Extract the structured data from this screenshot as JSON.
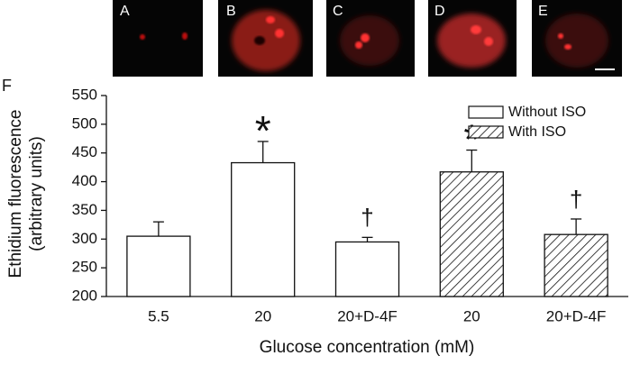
{
  "panels": [
    "A",
    "B",
    "C",
    "D",
    "E"
  ],
  "figure_label": "F",
  "chart_data": {
    "type": "bar",
    "y_label": [
      "Ethidium fluorescence",
      "(arbitrary units)"
    ],
    "x_label": "Glucose concentration (mM)",
    "categories": [
      "5.5",
      "20",
      "20+D-4F",
      "20",
      "20+D-4F"
    ],
    "series": [
      {
        "name": "Without ISO",
        "color": "#ffffff",
        "hatch": false,
        "values": [
          305,
          433,
          295,
          null,
          null
        ],
        "errors": [
          25,
          37,
          8,
          null,
          null
        ]
      },
      {
        "name": "With ISO",
        "color": "#ffffff",
        "hatch": true,
        "values": [
          null,
          null,
          null,
          417,
          308
        ],
        "errors": [
          null,
          null,
          null,
          38,
          27
        ]
      }
    ],
    "markers": [
      null,
      "*",
      "†",
      "*",
      "†"
    ],
    "ylim": [
      200,
      550
    ],
    "yticks": [
      200,
      250,
      300,
      350,
      400,
      450,
      500,
      550
    ],
    "legend": "upper-right"
  }
}
